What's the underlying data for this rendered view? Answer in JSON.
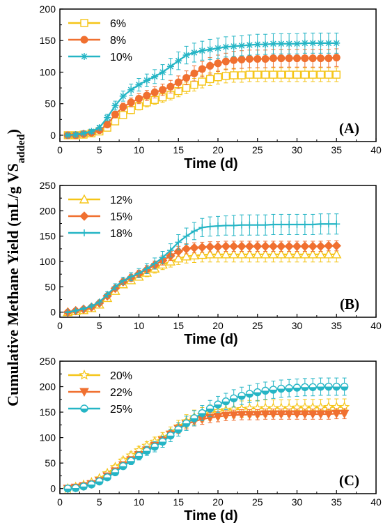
{
  "ylabel": "Cumulative Methane Yield (mL/g VS",
  "ylabel_sub": "added",
  "ylabel_close": ")",
  "colors": {
    "yellow": "#F5C518",
    "orange": "#F07030",
    "teal": "#25B5C5",
    "axis": "#000000"
  },
  "chart_data": [
    {
      "type": "line",
      "panel_label": "(A)",
      "xlabel": "Time (d)",
      "xlim": [
        0,
        40
      ],
      "ylim": [
        -10,
        200
      ],
      "xticks": [
        0,
        5,
        10,
        15,
        20,
        25,
        30,
        35,
        40
      ],
      "yticks": [
        0,
        50,
        100,
        150,
        200
      ],
      "legend_position": "top-left",
      "x": [
        1,
        2,
        3,
        4,
        5,
        6,
        7,
        8,
        9,
        10,
        11,
        12,
        13,
        14,
        15,
        16,
        17,
        18,
        19,
        20,
        21,
        22,
        23,
        24,
        25,
        26,
        27,
        28,
        29,
        30,
        31,
        32,
        33,
        34,
        35
      ],
      "series": [
        {
          "name": "6%",
          "color": "#F5C518",
          "marker": "square-open",
          "values": [
            0,
            0,
            1,
            3,
            6,
            12,
            22,
            32,
            40,
            46,
            52,
            56,
            60,
            64,
            70,
            75,
            80,
            85,
            89,
            92,
            94,
            95,
            95,
            96,
            96,
            96,
            96,
            96,
            96,
            96,
            96,
            96,
            96,
            96,
            96
          ],
          "error": [
            1,
            1,
            1,
            2,
            2,
            3,
            4,
            5,
            6,
            6,
            7,
            7,
            8,
            8,
            9,
            9,
            10,
            10,
            10,
            11,
            11,
            11,
            11,
            11,
            11,
            11,
            11,
            11,
            11,
            11,
            11,
            11,
            11,
            11,
            11
          ]
        },
        {
          "name": "8%",
          "color": "#F07030",
          "marker": "circle-filled",
          "values": [
            0,
            0,
            2,
            4,
            8,
            17,
            33,
            45,
            52,
            58,
            63,
            68,
            72,
            77,
            84,
            91,
            98,
            105,
            110,
            114,
            117,
            119,
            120,
            121,
            121,
            121,
            122,
            122,
            122,
            122,
            122,
            122,
            122,
            122,
            123
          ],
          "error": [
            1,
            1,
            2,
            2,
            3,
            4,
            5,
            6,
            7,
            8,
            8,
            9,
            9,
            10,
            10,
            11,
            12,
            12,
            13,
            13,
            13,
            14,
            14,
            14,
            14,
            14,
            14,
            14,
            14,
            14,
            14,
            14,
            14,
            14,
            14
          ]
        },
        {
          "name": "10%",
          "color": "#25B5C5",
          "marker": "star",
          "values": [
            0,
            1,
            3,
            6,
            12,
            28,
            47,
            62,
            72,
            80,
            87,
            93,
            100,
            109,
            118,
            127,
            131,
            134,
            136,
            138,
            140,
            141,
            142,
            143,
            144,
            144,
            145,
            145,
            145,
            145,
            146,
            146,
            146,
            146,
            146
          ],
          "error": [
            1,
            1,
            2,
            3,
            4,
            5,
            7,
            8,
            9,
            10,
            10,
            11,
            12,
            13,
            14,
            14,
            15,
            15,
            16,
            16,
            16,
            16,
            16,
            16,
            16,
            16,
            16,
            16,
            16,
            16,
            16,
            16,
            16,
            16,
            16
          ]
        }
      ]
    },
    {
      "type": "line",
      "panel_label": "(B)",
      "xlabel": "Time (d)",
      "xlim": [
        0,
        40
      ],
      "ylim": [
        -10,
        250
      ],
      "xticks": [
        0,
        5,
        10,
        15,
        20,
        25,
        30,
        35,
        40
      ],
      "yticks": [
        0,
        50,
        100,
        150,
        200,
        250
      ],
      "legend_position": "top-left",
      "x": [
        1,
        2,
        3,
        4,
        5,
        6,
        7,
        8,
        9,
        10,
        11,
        12,
        13,
        14,
        15,
        16,
        17,
        18,
        19,
        20,
        21,
        22,
        23,
        24,
        25,
        26,
        27,
        28,
        29,
        30,
        31,
        32,
        33,
        34,
        35
      ],
      "series": [
        {
          "name": "12%",
          "color": "#F5C518",
          "marker": "triangle-open",
          "values": [
            0,
            2,
            4,
            8,
            15,
            28,
            42,
            55,
            63,
            70,
            78,
            86,
            94,
            100,
            106,
            110,
            112,
            113,
            114,
            114,
            114,
            114,
            114,
            114,
            114,
            114,
            114,
            114,
            114,
            114,
            114,
            114,
            114,
            114,
            114
          ],
          "error": [
            1,
            1,
            2,
            2,
            3,
            4,
            5,
            6,
            6,
            7,
            8,
            9,
            10,
            11,
            12,
            13,
            14,
            14,
            15,
            15,
            15,
            15,
            15,
            15,
            15,
            15,
            15,
            15,
            15,
            15,
            15,
            15,
            15,
            15,
            15
          ]
        },
        {
          "name": "15%",
          "color": "#F07030",
          "marker": "diamond-filled",
          "values": [
            0,
            3,
            6,
            10,
            18,
            32,
            47,
            60,
            68,
            76,
            84,
            93,
            102,
            111,
            120,
            125,
            127,
            128,
            129,
            129,
            130,
            130,
            130,
            130,
            130,
            130,
            130,
            130,
            130,
            130,
            130,
            130,
            130,
            131,
            131
          ],
          "error": [
            1,
            1,
            2,
            3,
            3,
            4,
            5,
            6,
            7,
            7,
            8,
            8,
            9,
            9,
            10,
            10,
            10,
            10,
            10,
            10,
            10,
            10,
            10,
            10,
            10,
            10,
            10,
            10,
            10,
            10,
            10,
            10,
            10,
            10,
            10
          ]
        },
        {
          "name": "18%",
          "color": "#25B5C5",
          "marker": "plus",
          "values": [
            0,
            3,
            7,
            12,
            20,
            35,
            50,
            62,
            70,
            77,
            86,
            96,
            108,
            122,
            138,
            150,
            160,
            167,
            169,
            170,
            171,
            171,
            172,
            172,
            172,
            172,
            173,
            173,
            173,
            173,
            173,
            173,
            174,
            174,
            174
          ],
          "error": [
            1,
            2,
            2,
            3,
            4,
            5,
            6,
            7,
            8,
            9,
            10,
            11,
            12,
            13,
            15,
            16,
            17,
            18,
            19,
            19,
            19,
            20,
            20,
            20,
            20,
            20,
            20,
            20,
            20,
            20,
            20,
            20,
            20,
            20,
            20
          ]
        }
      ]
    },
    {
      "type": "line",
      "panel_label": "(C)",
      "xlabel": "Time (d)",
      "xlim": [
        0,
        40
      ],
      "ylim": [
        -10,
        250
      ],
      "xticks": [
        0,
        5,
        10,
        15,
        20,
        25,
        30,
        35,
        40
      ],
      "yticks": [
        0,
        50,
        100,
        150,
        200,
        250
      ],
      "legend_position": "top-left",
      "x": [
        1,
        2,
        3,
        4,
        5,
        6,
        7,
        8,
        9,
        10,
        11,
        12,
        13,
        14,
        15,
        16,
        17,
        18,
        19,
        20,
        21,
        22,
        23,
        24,
        25,
        26,
        27,
        28,
        29,
        30,
        31,
        32,
        33,
        34,
        35,
        36
      ],
      "series": [
        {
          "name": "20%",
          "color": "#F5C518",
          "marker": "star-open",
          "values": [
            0,
            3,
            7,
            12,
            20,
            30,
            42,
            55,
            65,
            75,
            84,
            92,
            100,
            110,
            122,
            132,
            140,
            145,
            149,
            152,
            154,
            155,
            156,
            157,
            157,
            158,
            158,
            158,
            158,
            159,
            159,
            159,
            159,
            160,
            160,
            160
          ],
          "error": [
            1,
            1,
            2,
            3,
            3,
            4,
            5,
            6,
            7,
            8,
            8,
            9,
            10,
            11,
            12,
            13,
            14,
            14,
            15,
            15,
            15,
            16,
            16,
            16,
            16,
            16,
            16,
            16,
            16,
            16,
            16,
            16,
            16,
            16,
            16,
            16
          ]
        },
        {
          "name": "22%",
          "color": "#F07030",
          "marker": "triangle-down-filled",
          "values": [
            0,
            2,
            5,
            9,
            15,
            24,
            34,
            46,
            56,
            66,
            75,
            84,
            94,
            106,
            117,
            126,
            132,
            136,
            139,
            141,
            143,
            144,
            145,
            145,
            145,
            146,
            146,
            146,
            146,
            146,
            146,
            146,
            146,
            146,
            147,
            147
          ],
          "error": [
            1,
            1,
            1,
            2,
            2,
            3,
            4,
            5,
            5,
            6,
            7,
            7,
            8,
            8,
            9,
            9,
            9,
            10,
            10,
            10,
            10,
            10,
            10,
            10,
            10,
            10,
            10,
            10,
            10,
            10,
            10,
            10,
            10,
            10,
            10,
            10
          ]
        },
        {
          "name": "25%",
          "color": "#25B5C5",
          "marker": "circle-half",
          "values": [
            0,
            1,
            4,
            8,
            14,
            22,
            32,
            44,
            54,
            64,
            74,
            82,
            92,
            104,
            116,
            128,
            138,
            148,
            157,
            165,
            171,
            177,
            182,
            186,
            189,
            192,
            194,
            196,
            197,
            198,
            199,
            199,
            200,
            200,
            200,
            200
          ],
          "error": [
            1,
            1,
            2,
            2,
            3,
            4,
            5,
            6,
            7,
            8,
            9,
            10,
            11,
            12,
            13,
            14,
            15,
            15,
            16,
            16,
            16,
            17,
            17,
            17,
            17,
            17,
            17,
            17,
            17,
            17,
            17,
            17,
            17,
            17,
            17,
            17
          ]
        }
      ]
    }
  ]
}
